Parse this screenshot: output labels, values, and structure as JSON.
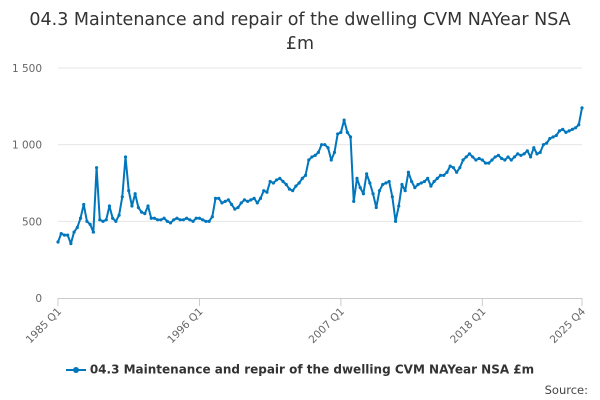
{
  "chart_data": {
    "type": "line",
    "title": "04.3 Maintenance and repair of the dwelling CVM NAYear NSA £m",
    "xlabel": "",
    "ylabel": "",
    "ylim": [
      0,
      1500
    ],
    "yticks": [
      0,
      500,
      1000,
      1500
    ],
    "ytick_labels": [
      "0",
      "500",
      "1 000",
      "1 500"
    ],
    "xtick_labels": [
      "1985 Q1",
      "1996 Q1",
      "2007 Q1",
      "2018 Q1",
      "2025 Q4"
    ],
    "xtick_indices": [
      0,
      44,
      88,
      132,
      163
    ],
    "grid": true,
    "legend_position": "bottom",
    "series": [
      {
        "name": "04.3 Maintenance and repair of the dwelling CVM NAYear NSA £m",
        "color": "#0076bd",
        "values": [
          365,
          420,
          410,
          410,
          355,
          430,
          460,
          520,
          610,
          500,
          480,
          430,
          850,
          510,
          500,
          510,
          600,
          520,
          500,
          540,
          660,
          920,
          700,
          600,
          680,
          590,
          560,
          550,
          600,
          520,
          520,
          510,
          510,
          520,
          500,
          490,
          510,
          520,
          510,
          510,
          520,
          510,
          500,
          520,
          520,
          510,
          500,
          500,
          530,
          650,
          650,
          620,
          630,
          640,
          610,
          580,
          590,
          620,
          640,
          630,
          640,
          650,
          620,
          650,
          700,
          690,
          760,
          750,
          770,
          780,
          760,
          740,
          710,
          700,
          730,
          750,
          780,
          800,
          900,
          920,
          930,
          950,
          1000,
          1000,
          980,
          900,
          950,
          1070,
          1080,
          1160,
          1080,
          1050,
          630,
          780,
          720,
          680,
          810,
          750,
          680,
          590,
          700,
          740,
          750,
          760,
          660,
          500,
          600,
          740,
          700,
          820,
          760,
          720,
          740,
          750,
          760,
          780,
          730,
          760,
          780,
          800,
          800,
          820,
          860,
          850,
          820,
          850,
          900,
          920,
          940,
          920,
          900,
          910,
          900,
          880,
          880,
          900,
          920,
          930,
          910,
          900,
          920,
          900,
          920,
          940,
          930,
          940,
          960,
          920,
          980,
          940,
          950,
          1000,
          1010,
          1040,
          1050,
          1060,
          1090,
          1100,
          1080,
          1090,
          1100,
          1110,
          1130,
          1240
        ]
      }
    ]
  },
  "legend": {
    "label": "04.3 Maintenance and repair of the dwelling CVM NAYear NSA £m"
  },
  "credit": {
    "label": "Source:"
  }
}
